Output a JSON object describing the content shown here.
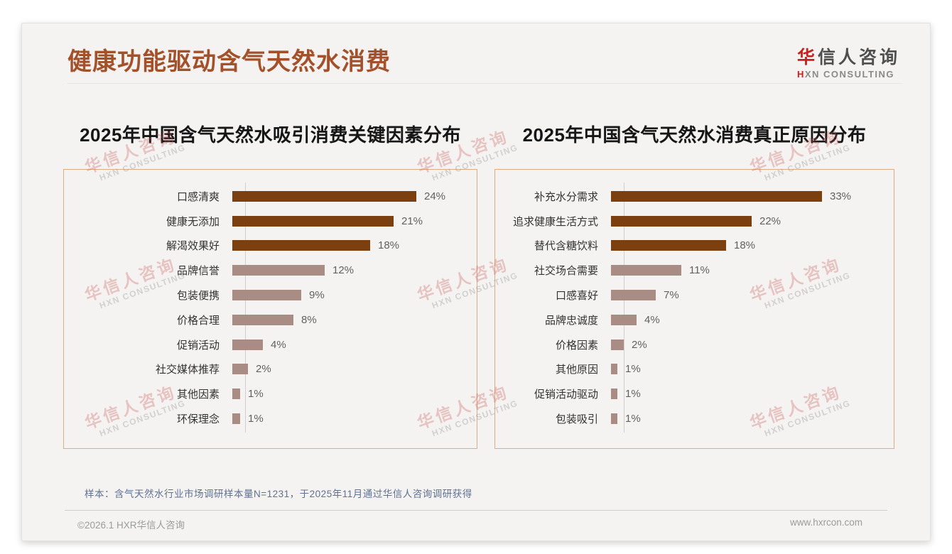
{
  "page": {
    "title": "健康功能驱动含气天然水消费",
    "logo": {
      "brand_accent": "华",
      "brand_rest": "信人咨询",
      "sub_accent": "H",
      "sub_rest": "XN CONSULTING"
    },
    "watermark": {
      "line1": "华信人咨询",
      "line2": "HXN CONSULTING"
    },
    "footnote": "样本：含气天然水行业市场调研样本量N=1231，于2025年11月通过华信人咨询调研获得",
    "footer": {
      "copyright": "©2026.1 HXR华信人咨询",
      "website": "www.hxrcon.com"
    }
  },
  "colors": {
    "bar_dark": "#7B3F10",
    "bar_light": "#A98D85",
    "title_brown": "#A3512A",
    "panel_border": "#DDAE85",
    "logo_red": "#C8201D",
    "footnote_blue": "#5F7191"
  },
  "chart_data": [
    {
      "type": "bar",
      "orientation": "horizontal",
      "title": "2025年中国含气天然水吸引消费关键因素分布",
      "unit": "%",
      "xlim": [
        0,
        24
      ],
      "grid": false,
      "legend": false,
      "categories": [
        "口感清爽",
        "健康无添加",
        "解渴效果好",
        "品牌信誉",
        "包装便携",
        "价格合理",
        "促销活动",
        "社交媒体推荐",
        "其他因素",
        "环保理念"
      ],
      "values": [
        24,
        21,
        18,
        12,
        9,
        8,
        4,
        2,
        1,
        1
      ],
      "emphasized": [
        true,
        true,
        true,
        false,
        false,
        false,
        false,
        false,
        false,
        false
      ]
    },
    {
      "type": "bar",
      "orientation": "horizontal",
      "title": "2025年中国含气天然水消费真正原因分布",
      "unit": "%",
      "xlim": [
        0,
        33
      ],
      "grid": false,
      "legend": false,
      "categories": [
        "补充水分需求",
        "追求健康生活方式",
        "替代含糖饮料",
        "社交场合需要",
        "口感喜好",
        "品牌忠诚度",
        "价格因素",
        "其他原因",
        "促销活动驱动",
        "包装吸引"
      ],
      "values": [
        33,
        22,
        18,
        11,
        7,
        4,
        2,
        1,
        1,
        1
      ],
      "emphasized": [
        true,
        true,
        true,
        false,
        false,
        false,
        false,
        false,
        false,
        false
      ]
    }
  ]
}
